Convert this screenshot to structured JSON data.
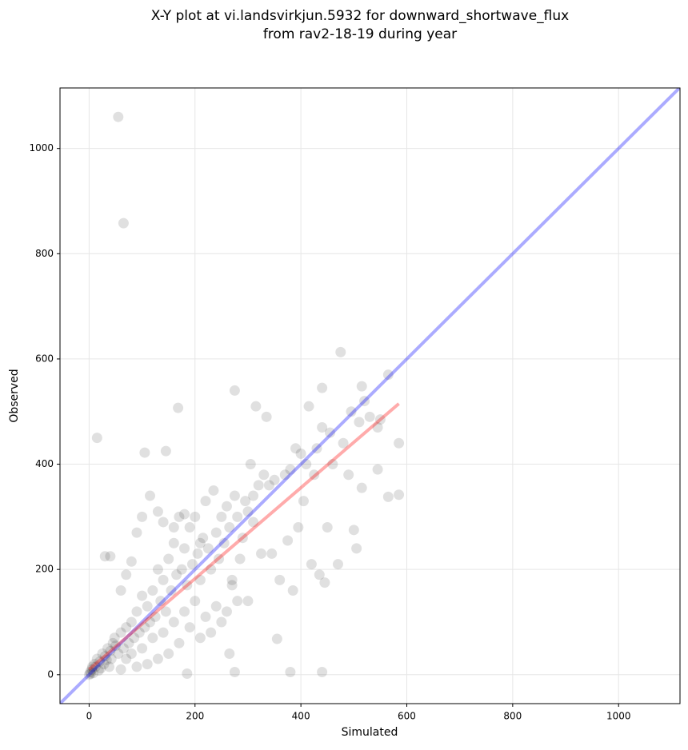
{
  "chart_data": {
    "type": "scatter",
    "title": [
      "X-Y plot at vi.landsvirkjun.5932 for downward_shortwave_flux",
      "from rav2-18-19 during year"
    ],
    "x_label": "Simulated",
    "y_label": "Observed",
    "xlim": [
      -55,
      1116
    ],
    "ylim": [
      -55,
      1115
    ],
    "xticks": [
      0,
      200,
      400,
      600,
      800,
      1000
    ],
    "yticks": [
      0,
      200,
      400,
      600,
      800,
      1000
    ],
    "grid": true,
    "series": [
      {
        "color": "#000000",
        "x": [
          55,
          65,
          15,
          105,
          145,
          168,
          275,
          475,
          440,
          565,
          515,
          585,
          585,
          565,
          440,
          380,
          275,
          355,
          265,
          185,
          0,
          2,
          5,
          8,
          10,
          12,
          15,
          20,
          25,
          30,
          35,
          40,
          45,
          50,
          3,
          6,
          18,
          22,
          28,
          33,
          38,
          42,
          48,
          55,
          60,
          65,
          70,
          75,
          80,
          85,
          90,
          95,
          100,
          105,
          110,
          115,
          120,
          125,
          130,
          135,
          140,
          145,
          150,
          155,
          160,
          165,
          170,
          175,
          180,
          185,
          190,
          195,
          200,
          205,
          210,
          215,
          220,
          225,
          230,
          235,
          240,
          245,
          250,
          255,
          260,
          265,
          270,
          275,
          280,
          285,
          290,
          295,
          300,
          305,
          310,
          315,
          320,
          325,
          330,
          335,
          340,
          345,
          350,
          360,
          370,
          375,
          380,
          385,
          390,
          395,
          400,
          405,
          410,
          415,
          420,
          425,
          430,
          435,
          440,
          445,
          450,
          455,
          460,
          470,
          480,
          490,
          495,
          500,
          505,
          510,
          515,
          520,
          530,
          545,
          545,
          550,
          40,
          30,
          60,
          70,
          80,
          90,
          100,
          115,
          130,
          140,
          160,
          180,
          210,
          250,
          230,
          210,
          190,
          170,
          150,
          130,
          110,
          90,
          70,
          60,
          80,
          100,
          120,
          140,
          160,
          180,
          200,
          220,
          240,
          260,
          270,
          280,
          300,
          310
        ],
        "values": [
          1060,
          858,
          450,
          422,
          425,
          507,
          540,
          613,
          545,
          570,
          548,
          440,
          342,
          338,
          5,
          5,
          5,
          68,
          40,
          2,
          0,
          5,
          10,
          3,
          20,
          15,
          30,
          25,
          40,
          35,
          50,
          45,
          60,
          55,
          2,
          15,
          8,
          12,
          20,
          28,
          15,
          30,
          70,
          40,
          80,
          50,
          90,
          60,
          100,
          70,
          120,
          80,
          150,
          90,
          130,
          100,
          160,
          110,
          200,
          140,
          180,
          120,
          220,
          160,
          250,
          190,
          300,
          200,
          240,
          170,
          280,
          210,
          300,
          230,
          180,
          260,
          330,
          240,
          200,
          350,
          270,
          220,
          300,
          250,
          320,
          280,
          180,
          340,
          300,
          220,
          260,
          330,
          310,
          400,
          340,
          510,
          360,
          230,
          380,
          490,
          360,
          230,
          370,
          180,
          380,
          255,
          390,
          160,
          430,
          280,
          420,
          330,
          400,
          510,
          210,
          380,
          430,
          190,
          470,
          175,
          280,
          460,
          400,
          210,
          440,
          380,
          500,
          275,
          240,
          480,
          355,
          520,
          490,
          390,
          470,
          485,
          225,
          225,
          160,
          190,
          215,
          270,
          300,
          340,
          310,
          290,
          280,
          305,
          250,
          100,
          80,
          70,
          90,
          60,
          40,
          30,
          20,
          15,
          30,
          10,
          40,
          50,
          70,
          80,
          100,
          120,
          140,
          110,
          130,
          120,
          170,
          140,
          140,
          290
        ]
      }
    ],
    "lines": [
      {
        "color": "#0000ff",
        "x": [
          -55,
          1116
        ],
        "values": [
          -55,
          1116
        ]
      },
      {
        "color": "#ff0000",
        "x": [
          0,
          585
        ],
        "values": [
          10,
          515
        ]
      }
    ]
  }
}
